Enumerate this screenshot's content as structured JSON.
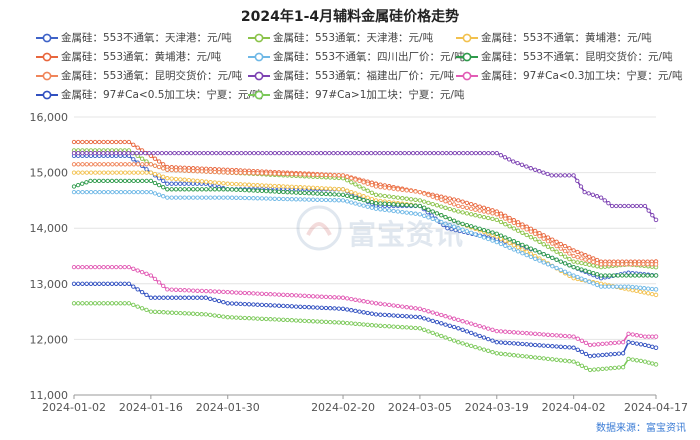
{
  "title": "2024年1-4月辅料金属硅价格走势",
  "source": "数据来源：富宝资讯",
  "watermark": "富宝资讯",
  "chart_data": {
    "type": "line",
    "ylim": [
      11000,
      16000
    ],
    "yticks": [
      "11,000",
      "12,000",
      "13,000",
      "14,000",
      "15,000",
      "16,000"
    ],
    "yvalues": [
      11000,
      12000,
      13000,
      14000,
      15000,
      16000
    ],
    "xlim": [
      "2024-01-02",
      "2024-04-17"
    ],
    "xticks": [
      "2024-01-02",
      "2024-01-16",
      "2024-01-30",
      "2024-02-20",
      "2024-03-05",
      "2024-03-19",
      "2024-04-02",
      "2024-04-17"
    ],
    "grid": true,
    "legend": "top",
    "series": [
      {
        "name": "金属硅：553不通氧：天津港：元/吨",
        "color": "#3f63c8",
        "points": [
          [
            "2024-01-02",
            15300
          ],
          [
            "2024-01-12",
            15300
          ],
          [
            "2024-01-16",
            15000
          ],
          [
            "2024-01-19",
            14800
          ],
          [
            "2024-01-26",
            14800
          ],
          [
            "2024-01-30",
            14700
          ],
          [
            "2024-02-20",
            14700
          ],
          [
            "2024-02-26",
            14400
          ],
          [
            "2024-03-05",
            14400
          ],
          [
            "2024-03-10",
            14000
          ],
          [
            "2024-03-19",
            13800
          ],
          [
            "2024-03-26",
            13600
          ],
          [
            "2024-04-02",
            13300
          ],
          [
            "2024-04-07",
            13100
          ],
          [
            "2024-04-12",
            13200
          ],
          [
            "2024-04-17",
            13150
          ]
        ]
      },
      {
        "name": "金属硅：553通氧：天津港：元/吨",
        "color": "#8bc34a",
        "points": [
          [
            "2024-01-02",
            15400
          ],
          [
            "2024-01-12",
            15400
          ],
          [
            "2024-01-16",
            15150
          ],
          [
            "2024-01-19",
            15050
          ],
          [
            "2024-01-30",
            15000
          ],
          [
            "2024-02-20",
            14900
          ],
          [
            "2024-02-26",
            14600
          ],
          [
            "2024-03-05",
            14500
          ],
          [
            "2024-03-12",
            14300
          ],
          [
            "2024-03-19",
            14150
          ],
          [
            "2024-03-26",
            13800
          ],
          [
            "2024-04-02",
            13400
          ],
          [
            "2024-04-07",
            13300
          ],
          [
            "2024-04-12",
            13350
          ],
          [
            "2024-04-17",
            13300
          ]
        ]
      },
      {
        "name": "金属硅：553不通氧：黄埔港：元/吨",
        "color": "#f2c14e",
        "points": [
          [
            "2024-01-02",
            15000
          ],
          [
            "2024-01-16",
            15000
          ],
          [
            "2024-01-19",
            14900
          ],
          [
            "2024-01-30",
            14800
          ],
          [
            "2024-02-20",
            14700
          ],
          [
            "2024-02-26",
            14500
          ],
          [
            "2024-03-05",
            14400
          ],
          [
            "2024-03-12",
            14100
          ],
          [
            "2024-03-19",
            13850
          ],
          [
            "2024-03-26",
            13500
          ],
          [
            "2024-04-02",
            13100
          ],
          [
            "2024-04-07",
            13000
          ],
          [
            "2024-04-12",
            12900
          ],
          [
            "2024-04-17",
            12800
          ]
        ]
      },
      {
        "name": "金属硅：553通氧：黄埔港：元/吨",
        "color": "#e8663d",
        "points": [
          [
            "2024-01-02",
            15550
          ],
          [
            "2024-01-12",
            15550
          ],
          [
            "2024-01-16",
            15300
          ],
          [
            "2024-01-19",
            15100
          ],
          [
            "2024-01-30",
            15050
          ],
          [
            "2024-02-20",
            14950
          ],
          [
            "2024-02-26",
            14800
          ],
          [
            "2024-03-05",
            14650
          ],
          [
            "2024-03-12",
            14500
          ],
          [
            "2024-03-19",
            14300
          ],
          [
            "2024-03-26",
            13950
          ],
          [
            "2024-04-02",
            13600
          ],
          [
            "2024-04-07",
            13400
          ],
          [
            "2024-04-17",
            13400
          ]
        ]
      },
      {
        "name": "金属硅：553不通氧：四川出厂价：元/吨",
        "color": "#6fb8e6",
        "points": [
          [
            "2024-01-02",
            14650
          ],
          [
            "2024-01-16",
            14650
          ],
          [
            "2024-01-19",
            14550
          ],
          [
            "2024-01-30",
            14550
          ],
          [
            "2024-02-20",
            14500
          ],
          [
            "2024-02-26",
            14350
          ],
          [
            "2024-03-05",
            14250
          ],
          [
            "2024-03-12",
            14000
          ],
          [
            "2024-03-19",
            13750
          ],
          [
            "2024-03-26",
            13450
          ],
          [
            "2024-04-02",
            13150
          ],
          [
            "2024-04-07",
            12950
          ],
          [
            "2024-04-12",
            12950
          ],
          [
            "2024-04-17",
            12900
          ]
        ]
      },
      {
        "name": "金属硅：553不通氧：昆明交货价：元/吨",
        "color": "#2e9a4b",
        "points": [
          [
            "2024-01-02",
            14750
          ],
          [
            "2024-01-05",
            14850
          ],
          [
            "2024-01-16",
            14850
          ],
          [
            "2024-01-19",
            14700
          ],
          [
            "2024-01-30",
            14700
          ],
          [
            "2024-02-20",
            14600
          ],
          [
            "2024-02-26",
            14450
          ],
          [
            "2024-03-05",
            14400
          ],
          [
            "2024-03-12",
            14100
          ],
          [
            "2024-03-19",
            13900
          ],
          [
            "2024-03-26",
            13600
          ],
          [
            "2024-04-02",
            13300
          ],
          [
            "2024-04-07",
            13150
          ],
          [
            "2024-04-17",
            13150
          ]
        ]
      },
      {
        "name": "金属硅：553通氧：昆明交货价：元/吨",
        "color": "#f0855a",
        "points": [
          [
            "2024-01-02",
            15150
          ],
          [
            "2024-01-16",
            15150
          ],
          [
            "2024-01-19",
            15050
          ],
          [
            "2024-01-30",
            15000
          ],
          [
            "2024-02-20",
            14950
          ],
          [
            "2024-02-26",
            14750
          ],
          [
            "2024-03-05",
            14650
          ],
          [
            "2024-03-12",
            14400
          ],
          [
            "2024-03-19",
            14250
          ],
          [
            "2024-03-26",
            13900
          ],
          [
            "2024-04-02",
            13500
          ],
          [
            "2024-04-07",
            13350
          ],
          [
            "2024-04-17",
            13350
          ]
        ]
      },
      {
        "name": "金属硅：553通氧：福建出厂价：元/吨",
        "color": "#7d43b3",
        "points": [
          [
            "2024-01-02",
            15350
          ],
          [
            "2024-03-19",
            15350
          ],
          [
            "2024-03-22",
            15200
          ],
          [
            "2024-03-26",
            15050
          ],
          [
            "2024-03-29",
            14950
          ],
          [
            "2024-04-02",
            14950
          ],
          [
            "2024-04-04",
            14650
          ],
          [
            "2024-04-07",
            14550
          ],
          [
            "2024-04-09",
            14400
          ],
          [
            "2024-04-15",
            14400
          ],
          [
            "2024-04-17",
            14150
          ]
        ]
      },
      {
        "name": "金属硅：97#Ca<0.3加工块：宁夏：元/吨",
        "color": "#e25cb5",
        "points": [
          [
            "2024-01-02",
            13300
          ],
          [
            "2024-01-12",
            13300
          ],
          [
            "2024-01-16",
            13150
          ],
          [
            "2024-01-19",
            12900
          ],
          [
            "2024-01-30",
            12850
          ],
          [
            "2024-02-20",
            12750
          ],
          [
            "2024-02-26",
            12650
          ],
          [
            "2024-03-05",
            12550
          ],
          [
            "2024-03-12",
            12350
          ],
          [
            "2024-03-19",
            12150
          ],
          [
            "2024-04-02",
            12050
          ],
          [
            "2024-04-05",
            11900
          ],
          [
            "2024-04-11",
            11950
          ],
          [
            "2024-04-12",
            12100
          ],
          [
            "2024-04-15",
            12050
          ],
          [
            "2024-04-17",
            12050
          ]
        ]
      },
      {
        "name": "金属硅：97#Ca<0.5加工块：宁夏：元/吨",
        "color": "#3150c0",
        "points": [
          [
            "2024-01-02",
            13000
          ],
          [
            "2024-01-12",
            13000
          ],
          [
            "2024-01-16",
            12750
          ],
          [
            "2024-01-26",
            12750
          ],
          [
            "2024-01-30",
            12650
          ],
          [
            "2024-02-20",
            12550
          ],
          [
            "2024-02-26",
            12450
          ],
          [
            "2024-03-05",
            12400
          ],
          [
            "2024-03-12",
            12200
          ],
          [
            "2024-03-19",
            11950
          ],
          [
            "2024-04-02",
            11850
          ],
          [
            "2024-04-05",
            11700
          ],
          [
            "2024-04-11",
            11750
          ],
          [
            "2024-04-12",
            11950
          ],
          [
            "2024-04-15",
            11900
          ],
          [
            "2024-04-17",
            11850
          ]
        ]
      },
      {
        "name": "金属硅：97#Ca>1加工块：宁夏：元/吨",
        "color": "#7cc95a",
        "points": [
          [
            "2024-01-02",
            12650
          ],
          [
            "2024-01-12",
            12650
          ],
          [
            "2024-01-16",
            12500
          ],
          [
            "2024-01-26",
            12450
          ],
          [
            "2024-01-30",
            12400
          ],
          [
            "2024-02-20",
            12300
          ],
          [
            "2024-02-26",
            12250
          ],
          [
            "2024-03-05",
            12200
          ],
          [
            "2024-03-12",
            11950
          ],
          [
            "2024-03-19",
            11750
          ],
          [
            "2024-04-02",
            11600
          ],
          [
            "2024-04-05",
            11450
          ],
          [
            "2024-04-11",
            11500
          ],
          [
            "2024-04-12",
            11650
          ],
          [
            "2024-04-15",
            11600
          ],
          [
            "2024-04-17",
            11550
          ]
        ]
      }
    ]
  }
}
